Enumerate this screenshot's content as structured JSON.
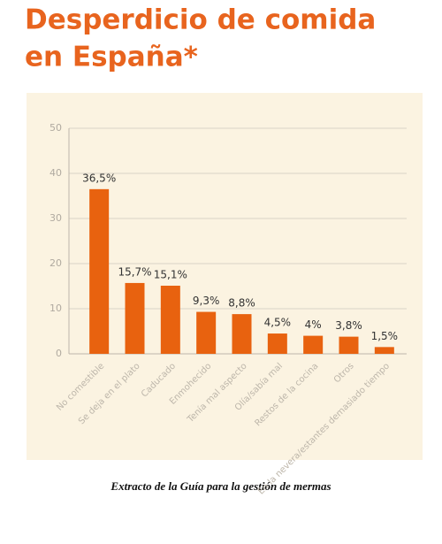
{
  "chart_data": {
    "type": "bar",
    "title": [
      "Desperdicio de comida",
      "en España*"
    ],
    "categories": [
      "No comestible",
      "Se deja en el plato",
      "Caducado",
      "Enmohecido",
      "Tenía mal aspecto",
      "Olía/sabía mal",
      "Restos de la cocina",
      "Otros",
      "En la nevera/estantes demasiado tiempo"
    ],
    "values": [
      36.5,
      15.7,
      15.1,
      9.3,
      8.8,
      4.5,
      4,
      3.8,
      1.5
    ],
    "value_labels": [
      "36,5%",
      "15,7%",
      "15,1%",
      "9,3%",
      "8,8%",
      "4,5%",
      "4%",
      "3,8%",
      "1,5%"
    ],
    "color": "#e8620f",
    "ylim": [
      0,
      50
    ],
    "yticks": [
      0,
      10,
      20,
      30,
      40,
      50
    ],
    "grid": true,
    "caption": "Extracto de la Guía para la gestión de mermas"
  }
}
